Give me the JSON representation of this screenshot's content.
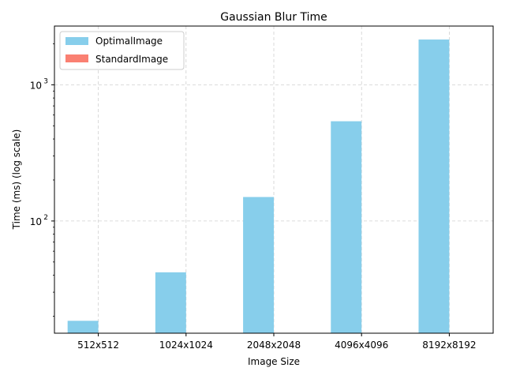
{
  "chart_data": {
    "type": "bar",
    "title": "Gaussian Blur Time",
    "xlabel": "Image Size",
    "ylabel": "Time (ms) (log scale)",
    "yscale": "log",
    "ylim": [
      15,
      2700
    ],
    "grid": true,
    "legend_position": "top-left",
    "categories": [
      "512x512",
      "1024x1024",
      "2048x2048",
      "4096x4096",
      "8192x8192"
    ],
    "series": [
      {
        "name": "OptimalImage",
        "color": "#87ceeb",
        "values": [
          18.5,
          42,
          150,
          540,
          2150
        ]
      },
      {
        "name": "StandardImage",
        "color": "#fa8072",
        "values": [
          null,
          null,
          null,
          null,
          null
        ]
      }
    ],
    "yticks": [
      {
        "value": 100,
        "label": "10",
        "exp": "2"
      },
      {
        "value": 1000,
        "label": "10",
        "exp": "3"
      }
    ]
  }
}
